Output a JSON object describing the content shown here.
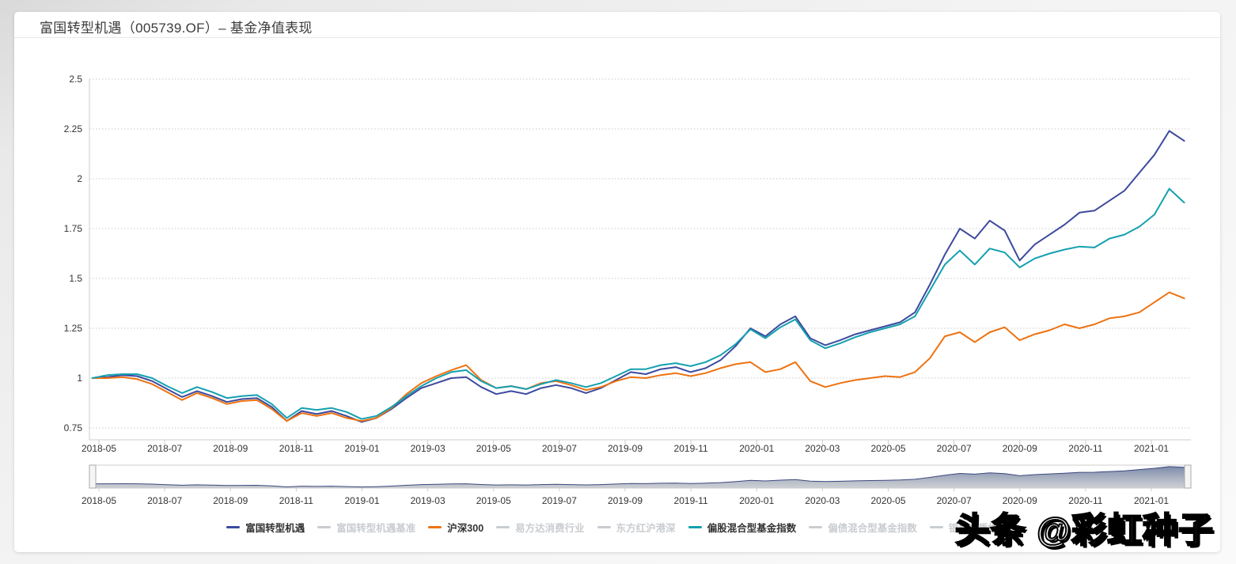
{
  "header": {
    "title": "富国转型机遇（005739.OF）– 基金净值表现"
  },
  "watermark": {
    "text": "头条 @彩虹种子"
  },
  "colors": {
    "series_fund": "#3d4a9e",
    "series_hs300": "#ee7210",
    "series_equity_index": "#14a0b0",
    "inactive": "#c9ccd0",
    "grid": "#c9c9c9",
    "axis": "#cccccc",
    "axis_text": "#333333",
    "navigator_line": "#3d4a7e",
    "navigator_fill_top": "#5a6b96",
    "navigator_fill_bottom": "#9aa0a8"
  },
  "legend": {
    "items": [
      {
        "label": "富国转型机遇",
        "color": "#3d4a9e",
        "active": true
      },
      {
        "label": "富国转型机遇基准",
        "color": "#c9ccd0",
        "active": false
      },
      {
        "label": "沪深300",
        "color": "#ee7210",
        "active": true
      },
      {
        "label": "易方达消费行业",
        "color": "#c9ccd0",
        "active": false
      },
      {
        "label": "东方红沪港深",
        "color": "#c9ccd0",
        "active": false
      },
      {
        "label": "偏股混合型基金指数",
        "color": "#14a0b0",
        "active": true
      },
      {
        "label": "偏债混合型基金指数",
        "color": "#c9ccd0",
        "active": false
      },
      {
        "label": "银华优质增长",
        "color": "#c9ccd0",
        "active": false
      }
    ]
  },
  "chart_data": {
    "type": "line",
    "title": "基金净值表现",
    "ylim": [
      0.75,
      2.5
    ],
    "y_ticks": [
      2.5,
      2.25,
      2,
      1.75,
      1.5,
      1.25,
      1,
      0.75
    ],
    "x_tick_labels": [
      "2018-05",
      "2018-07",
      "2018-09",
      "2018-11",
      "2019-01",
      "2019-03",
      "2019-05",
      "2019-07",
      "2019-09",
      "2019-11",
      "2020-01",
      "2020-03",
      "2020-05",
      "2020-07",
      "2020-09",
      "2020-11",
      "2021-01"
    ],
    "x_tick_interval_months": 2,
    "x_range_months": [
      -0.2,
      33.0
    ],
    "grid": "horizontal-dotted",
    "legend_position": "bottom",
    "navigator": {
      "series": "富国转型机遇",
      "x_tick_labels": [
        "2018-05",
        "2018-07",
        "2018-09",
        "2018-11",
        "2019-01",
        "2019-03",
        "2019-05",
        "2019-07",
        "2019-09",
        "2019-11",
        "2020-01",
        "2020-03",
        "2020-05",
        "2020-07",
        "2020-09",
        "2020-11",
        "2021-01"
      ]
    },
    "series": [
      {
        "name": "富国转型机遇",
        "color": "#3d4a9e",
        "values": [
          1.0,
          1.005,
          1.015,
          1.01,
          0.985,
          0.945,
          0.905,
          0.935,
          0.91,
          0.88,
          0.895,
          0.9,
          0.855,
          0.785,
          0.835,
          0.82,
          0.835,
          0.81,
          0.78,
          0.8,
          0.845,
          0.9,
          0.95,
          0.975,
          1.0,
          1.005,
          0.955,
          0.92,
          0.935,
          0.92,
          0.95,
          0.965,
          0.95,
          0.925,
          0.95,
          0.99,
          1.03,
          1.02,
          1.045,
          1.055,
          1.03,
          1.05,
          1.09,
          1.16,
          1.25,
          1.21,
          1.27,
          1.31,
          1.2,
          1.165,
          1.19,
          1.22,
          1.24,
          1.26,
          1.28,
          1.33,
          1.47,
          1.62,
          1.75,
          1.7,
          1.79,
          1.74,
          1.59,
          1.67,
          1.72,
          1.77,
          1.83,
          1.84,
          1.89,
          1.94,
          2.03,
          2.12,
          2.24,
          2.19
        ]
      },
      {
        "name": "沪深300",
        "color": "#ee7210",
        "values": [
          1.0,
          1.0,
          1.005,
          0.995,
          0.97,
          0.93,
          0.89,
          0.925,
          0.9,
          0.87,
          0.885,
          0.89,
          0.845,
          0.785,
          0.825,
          0.81,
          0.825,
          0.8,
          0.785,
          0.8,
          0.85,
          0.92,
          0.975,
          1.01,
          1.04,
          1.065,
          0.99,
          0.95,
          0.96,
          0.945,
          0.975,
          0.985,
          0.965,
          0.94,
          0.955,
          0.985,
          1.005,
          1.0,
          1.015,
          1.025,
          1.01,
          1.025,
          1.05,
          1.07,
          1.08,
          1.03,
          1.045,
          1.08,
          0.985,
          0.955,
          0.975,
          0.99,
          1.0,
          1.01,
          1.005,
          1.03,
          1.1,
          1.21,
          1.23,
          1.18,
          1.23,
          1.255,
          1.19,
          1.22,
          1.24,
          1.27,
          1.25,
          1.27,
          1.3,
          1.31,
          1.33,
          1.38,
          1.43,
          1.4
        ]
      },
      {
        "name": "偏股混合型基金指数",
        "color": "#14a0b0",
        "values": [
          1.0,
          1.015,
          1.02,
          1.02,
          1.0,
          0.96,
          0.925,
          0.955,
          0.93,
          0.9,
          0.91,
          0.915,
          0.87,
          0.8,
          0.85,
          0.84,
          0.85,
          0.83,
          0.795,
          0.81,
          0.855,
          0.91,
          0.96,
          1.0,
          1.03,
          1.04,
          0.985,
          0.95,
          0.96,
          0.945,
          0.97,
          0.99,
          0.975,
          0.955,
          0.975,
          1.01,
          1.045,
          1.045,
          1.065,
          1.075,
          1.06,
          1.08,
          1.115,
          1.17,
          1.245,
          1.2,
          1.255,
          1.295,
          1.19,
          1.15,
          1.175,
          1.205,
          1.23,
          1.25,
          1.27,
          1.31,
          1.44,
          1.57,
          1.64,
          1.57,
          1.65,
          1.63,
          1.555,
          1.6,
          1.625,
          1.645,
          1.66,
          1.655,
          1.7,
          1.72,
          1.76,
          1.82,
          1.95,
          1.88
        ]
      }
    ]
  }
}
